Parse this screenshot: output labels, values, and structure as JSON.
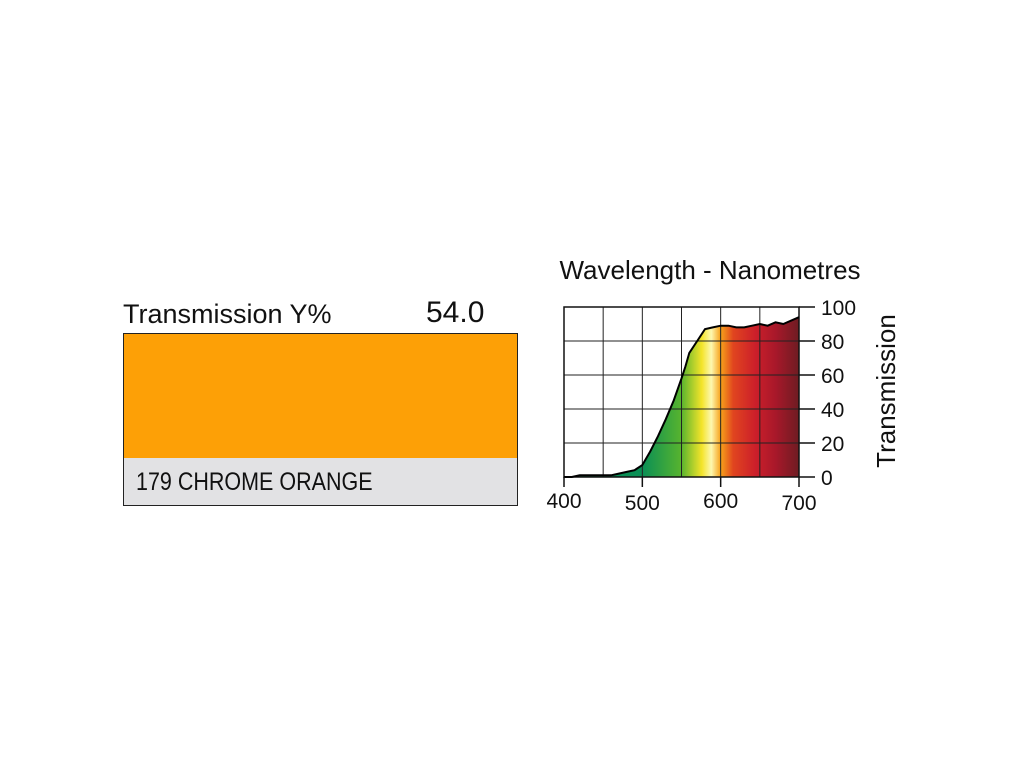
{
  "filter": {
    "transmission_label": "Transmission Y%",
    "transmission_value": "54.0",
    "name": "179 CHROME ORANGE",
    "swatch_color": "#fda006"
  },
  "chart_data": {
    "type": "area",
    "title": "Wavelength - Nanometres",
    "ylabel": "Transmission",
    "xlim": [
      400,
      700
    ],
    "ylim": [
      0,
      100
    ],
    "grid": true,
    "x_ticks": [
      400,
      500,
      600,
      700
    ],
    "y_ticks": [
      0,
      20,
      40,
      60,
      80,
      100
    ],
    "x_tick_labels": [
      "400",
      "500",
      "600",
      "700"
    ],
    "y_tick_labels": [
      "0",
      "20",
      "40",
      "60",
      "80",
      "100"
    ],
    "x": [
      400,
      410,
      420,
      430,
      440,
      450,
      460,
      470,
      480,
      490,
      500,
      510,
      520,
      530,
      540,
      550,
      555,
      560,
      570,
      580,
      590,
      600,
      610,
      620,
      630,
      640,
      650,
      660,
      670,
      680,
      690,
      700
    ],
    "y": [
      0,
      0,
      1,
      1,
      1,
      1,
      1,
      2,
      3,
      4,
      7,
      15,
      24,
      34,
      45,
      58,
      65,
      73,
      80,
      87,
      88,
      89,
      89,
      88,
      88,
      89,
      90,
      89,
      91,
      90,
      92,
      94
    ],
    "fill_colors": [
      "#0a8f55",
      "#58b42e",
      "#f4e42a",
      "#fdf8b0",
      "#f7a21a",
      "#e0451f",
      "#cc1f2a",
      "#a8182a",
      "#6e1c22"
    ]
  }
}
